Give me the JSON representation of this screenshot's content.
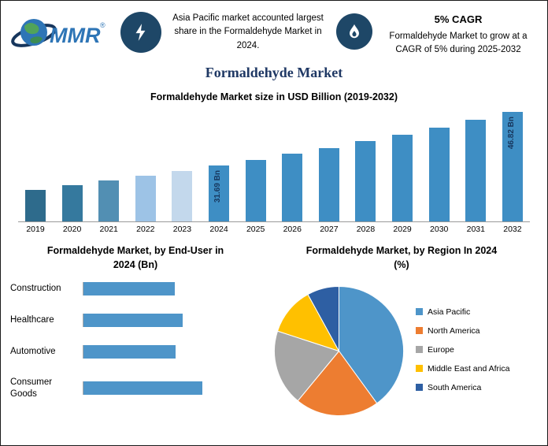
{
  "brand": {
    "logo_text": "MMR",
    "registered": "®"
  },
  "header": {
    "highlight1": {
      "icon": "lightning-icon",
      "text": "Asia Pacific market accounted largest share in the Formaldehyde Market in 2024."
    },
    "highlight2": {
      "icon": "flame-icon",
      "title": "5% CAGR",
      "text": "Formaldehyde Market to grow at a CAGR of 5% during 2025-2032"
    }
  },
  "page_title": "Formaldehyde Market",
  "colors": {
    "heading_navy": "#1F3864",
    "icon_circle_navy": "#1E4767",
    "hbar_blue": "#4E95C9"
  },
  "chart_data": [
    {
      "id": "market_size",
      "type": "bar",
      "title": "Formaldehyde Market size in USD Billion (2019-2032)",
      "categories": [
        "2019",
        "2020",
        "2021",
        "2022",
        "2023",
        "2024",
        "2025",
        "2026",
        "2027",
        "2028",
        "2029",
        "2030",
        "2031",
        "2032"
      ],
      "values": [
        24.86,
        26.1,
        27.41,
        28.78,
        30.18,
        31.69,
        33.27,
        34.94,
        36.68,
        38.52,
        40.44,
        42.46,
        44.59,
        46.82
      ],
      "bar_labels": {
        "2024": "31.69 Bn",
        "2032": "46.82 Bn"
      },
      "bar_colors": [
        "#2E6B8C",
        "#35799E",
        "#528FB3",
        "#9DC3E6",
        "#C3D8EC",
        "#3E8EC4",
        "#3E8EC4",
        "#3E8EC4",
        "#3E8EC4",
        "#3E8EC4",
        "#3E8EC4",
        "#3E8EC4",
        "#3E8EC4",
        "#3E8EC4"
      ],
      "ylabel": "USD Billion",
      "ylim": [
        16,
        47
      ],
      "grid": false
    },
    {
      "id": "end_user",
      "type": "bar",
      "orientation": "horizontal",
      "title": "Formaldehyde Market, by End-User in 2024 (Bn)",
      "categories": [
        "Construction",
        "Healthcare",
        "Automotive",
        "Consumer Goods"
      ],
      "values": [
        8.0,
        8.7,
        8.05,
        10.4
      ],
      "color": "#4E95C9",
      "xlim": [
        0,
        15.5
      ],
      "grid": false
    },
    {
      "id": "region",
      "type": "pie",
      "title": "Formaldehyde Market, by Region In 2024 (%)",
      "labels": [
        "Asia Pacific",
        "North America",
        "Europe",
        "Middle East and Africa",
        "South America"
      ],
      "values": [
        40,
        21,
        19,
        12,
        8
      ],
      "colors": [
        "#4E95C9",
        "#ED7D31",
        "#A6A6A6",
        "#FFC000",
        "#2E5FA3"
      ],
      "legend_position": "right"
    }
  ]
}
